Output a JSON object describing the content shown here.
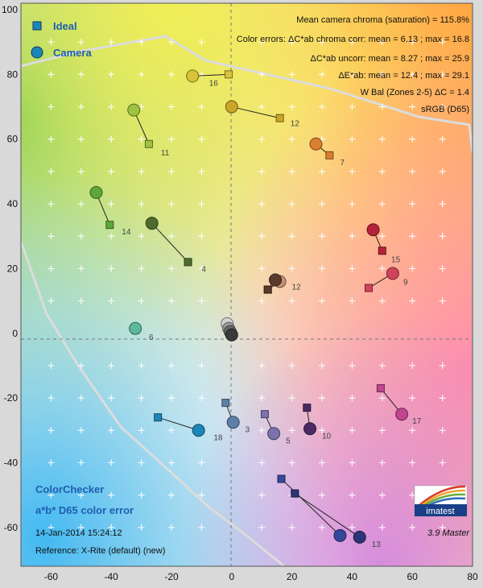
{
  "chart_data": {
    "type": "scatter",
    "title": "a*b* D65 color error",
    "subtitle": "ColorChecker",
    "xlim": [
      -70,
      80
    ],
    "ylim": [
      -72,
      102
    ],
    "xticks": [
      -60,
      -40,
      -20,
      0,
      20,
      40,
      60,
      80
    ],
    "yticks": [
      -60,
      -40,
      -20,
      0,
      20,
      40,
      60,
      80,
      100
    ],
    "legend": {
      "ideal": "Ideal",
      "camera": "Camera",
      "placement": "top-left"
    },
    "stats": [
      "Mean camera chroma (saturation) = 115.8%",
      "Color errors: ΔC*ab chroma corr:  mean = 6.13 ;  max = 16.8",
      "ΔC*ab uncorr:  mean = 8.27 ;  max = 25.9",
      "ΔE*ab:  mean = 12.4 ;  max = 29.1",
      "W Bal (Zones 2-5) ΔC = 1.4",
      "sRGB (D65)"
    ],
    "date": "14-Jan-2014 15:24:12",
    "reference": "Reference: X-Rite (default) (new)",
    "version": "3.9  Master",
    "logo_text": "imatest",
    "patches": [
      {
        "id": "16",
        "ideal": [
          -1,
          80
        ],
        "camera": [
          -13,
          79.5
        ],
        "color": "#d8c43a"
      },
      {
        "id": "12",
        "ideal": [
          16,
          66.5
        ],
        "camera": [
          0,
          70
        ],
        "color": "#c9a52a"
      },
      {
        "id": "11",
        "ideal": [
          -27.5,
          58.5
        ],
        "camera": [
          -32.5,
          69
        ],
        "color": "#9ec13f"
      },
      {
        "id": "7",
        "ideal": [
          32.5,
          55
        ],
        "camera": [
          28,
          58.5
        ],
        "color": "#d97e31"
      },
      {
        "id": "14",
        "ideal": [
          -40.5,
          33.5
        ],
        "camera": [
          -45,
          43.5
        ],
        "color": "#5ea83a"
      },
      {
        "id": "4",
        "ideal": [
          -14.5,
          22
        ],
        "camera": [
          -26.5,
          34
        ],
        "color": "#4f6b2e"
      },
      {
        "id": "15",
        "ideal": [
          50,
          25.5
        ],
        "camera": [
          47,
          32
        ],
        "color": "#b5233a"
      },
      {
        "id": "9",
        "ideal": [
          45.5,
          14
        ],
        "camera": [
          53.5,
          18.5
        ],
        "color": "#d0435a"
      },
      {
        "id": "2",
        "ideal": [
          12,
          13.5
        ],
        "camera": [
          16,
          16
        ],
        "color": "#c78e73"
      },
      {
        "id": "1",
        "ideal": [
          12,
          13.5
        ],
        "camera": [
          14.5,
          16.5
        ],
        "color": "#5a3a2c"
      },
      {
        "id": "6",
        "ideal": [
          -32,
          1
        ],
        "camera": [
          -32,
          1.5
        ],
        "color": "#5bb89a"
      },
      {
        "id": "19",
        "ideal": [
          -0.5,
          0
        ],
        "camera": [
          -1.5,
          3
        ],
        "color": "#d0d0d0"
      },
      {
        "id": "20",
        "ideal": [
          -0.5,
          0
        ],
        "camera": [
          -1,
          1.5
        ],
        "color": "#9a9a9a"
      },
      {
        "id": "21",
        "ideal": [
          -0.5,
          0
        ],
        "camera": [
          -0.5,
          0.5
        ],
        "color": "#6a6a6a"
      },
      {
        "id": "22",
        "ideal": [
          -0.5,
          0
        ],
        "camera": [
          0,
          -0.5
        ],
        "color": "#3a3a3a"
      },
      {
        "id": "17",
        "ideal": [
          49.5,
          -17
        ],
        "camera": [
          56.5,
          -25
        ],
        "color": "#c0458f"
      },
      {
        "id": "3",
        "ideal": [
          -2,
          -21.5
        ],
        "camera": [
          0.5,
          -27.5
        ],
        "color": "#5e7fa8"
      },
      {
        "id": "18",
        "ideal": [
          -24.5,
          -26
        ],
        "camera": [
          -11,
          -30
        ],
        "color": "#1d86b8"
      },
      {
        "id": "5",
        "ideal": [
          11,
          -25
        ],
        "camera": [
          14,
          -31
        ],
        "color": "#7a72ad"
      },
      {
        "id": "10",
        "ideal": [
          25,
          -23
        ],
        "camera": [
          26,
          -29.5
        ],
        "color": "#4b2a63"
      },
      {
        "id": "8",
        "ideal": [
          16.5,
          -45
        ],
        "camera": [
          36,
          -62.5
        ],
        "color": "#35479b"
      },
      {
        "id": "13",
        "ideal": [
          21,
          -49.5
        ],
        "camera": [
          42.5,
          -63
        ],
        "color": "#2b3577"
      }
    ],
    "labels": [
      {
        "text": "16",
        "at": [
          -7.5,
          76.5
        ]
      },
      {
        "text": "12",
        "at": [
          19.5,
          64
        ]
      },
      {
        "text": "11",
        "at": [
          -23.5,
          55
        ]
      },
      {
        "text": "7",
        "at": [
          36,
          52
        ]
      },
      {
        "text": "14",
        "at": [
          -36.5,
          30.5
        ]
      },
      {
        "text": "4",
        "at": [
          -10,
          19
        ]
      },
      {
        "text": "15",
        "at": [
          53,
          22
        ]
      },
      {
        "text": "9",
        "at": [
          57,
          15
        ]
      },
      {
        "text": "12",
        "at": [
          20,
          13.5
        ]
      },
      {
        "text": "6",
        "at": [
          -27.5,
          -2
        ]
      },
      {
        "text": "17",
        "at": [
          60,
          -28
        ]
      },
      {
        "text": "3",
        "at": [
          4.5,
          -30.5
        ]
      },
      {
        "text": "18",
        "at": [
          -6,
          -33
        ]
      },
      {
        "text": "5",
        "at": [
          18,
          -34
        ]
      },
      {
        "text": "10",
        "at": [
          30,
          -32.5
        ]
      },
      {
        "text": "13",
        "at": [
          46.5,
          -66
        ]
      }
    ]
  }
}
